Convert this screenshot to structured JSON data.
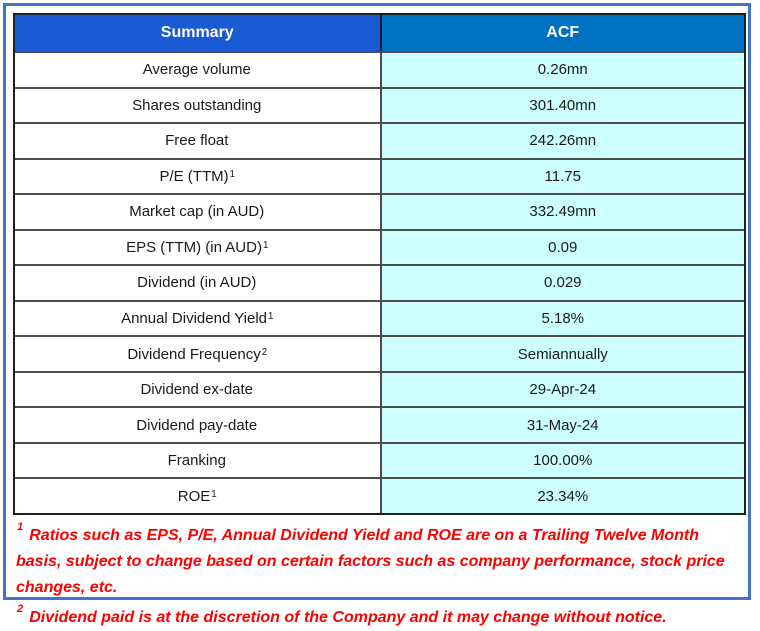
{
  "colors": {
    "frame_border": "#4472C4",
    "header_summary_bg": "#1A5AD2",
    "header_acf_bg": "#0070C0",
    "value_cell_bg": "#CCFFFF",
    "row_border": "#4D4D4D",
    "footnote_text": "#FF0000",
    "header_text": "#FFFFFF",
    "cell_text": "#1A1A1A"
  },
  "table": {
    "header": {
      "summary": "Summary",
      "acf": "ACF"
    },
    "rows": [
      {
        "label": "Average volume",
        "sup": "",
        "value": "0.26mn"
      },
      {
        "label": "Shares outstanding",
        "sup": "",
        "value": "301.40mn"
      },
      {
        "label": "Free float",
        "sup": "",
        "value": "242.26mn"
      },
      {
        "label": "P/E (TTM)",
        "sup": "1",
        "value": "11.75"
      },
      {
        "label": "Market cap (in AUD)",
        "sup": "",
        "value": "332.49mn"
      },
      {
        "label": "EPS (TTM) (in AUD)",
        "sup": "1",
        "value": "0.09"
      },
      {
        "label": "Dividend (in AUD)",
        "sup": "",
        "value": "0.029"
      },
      {
        "label": "Annual Dividend Yield",
        "sup": "1",
        "value": "5.18%"
      },
      {
        "label": "Dividend Frequency",
        "sup": "2",
        "value": "Semiannually"
      },
      {
        "label": "Dividend ex-date",
        "sup": "",
        "value": "29-Apr-24"
      },
      {
        "label": "Dividend pay-date",
        "sup": "",
        "value": "31-May-24"
      },
      {
        "label": "Franking",
        "sup": "",
        "value": "100.00%"
      },
      {
        "label": "ROE",
        "sup": "1",
        "value": "23.34%"
      }
    ]
  },
  "footnotes": [
    {
      "sup": "1",
      "text": "Ratios such as EPS, P/E, Annual Dividend Yield and ROE are on a Trailing Twelve Month basis, subject to change based on certain factors such as company performance, stock price changes, etc."
    },
    {
      "sup": "2",
      "text": "Dividend paid is at the discretion of the Company and it may change without notice."
    }
  ]
}
